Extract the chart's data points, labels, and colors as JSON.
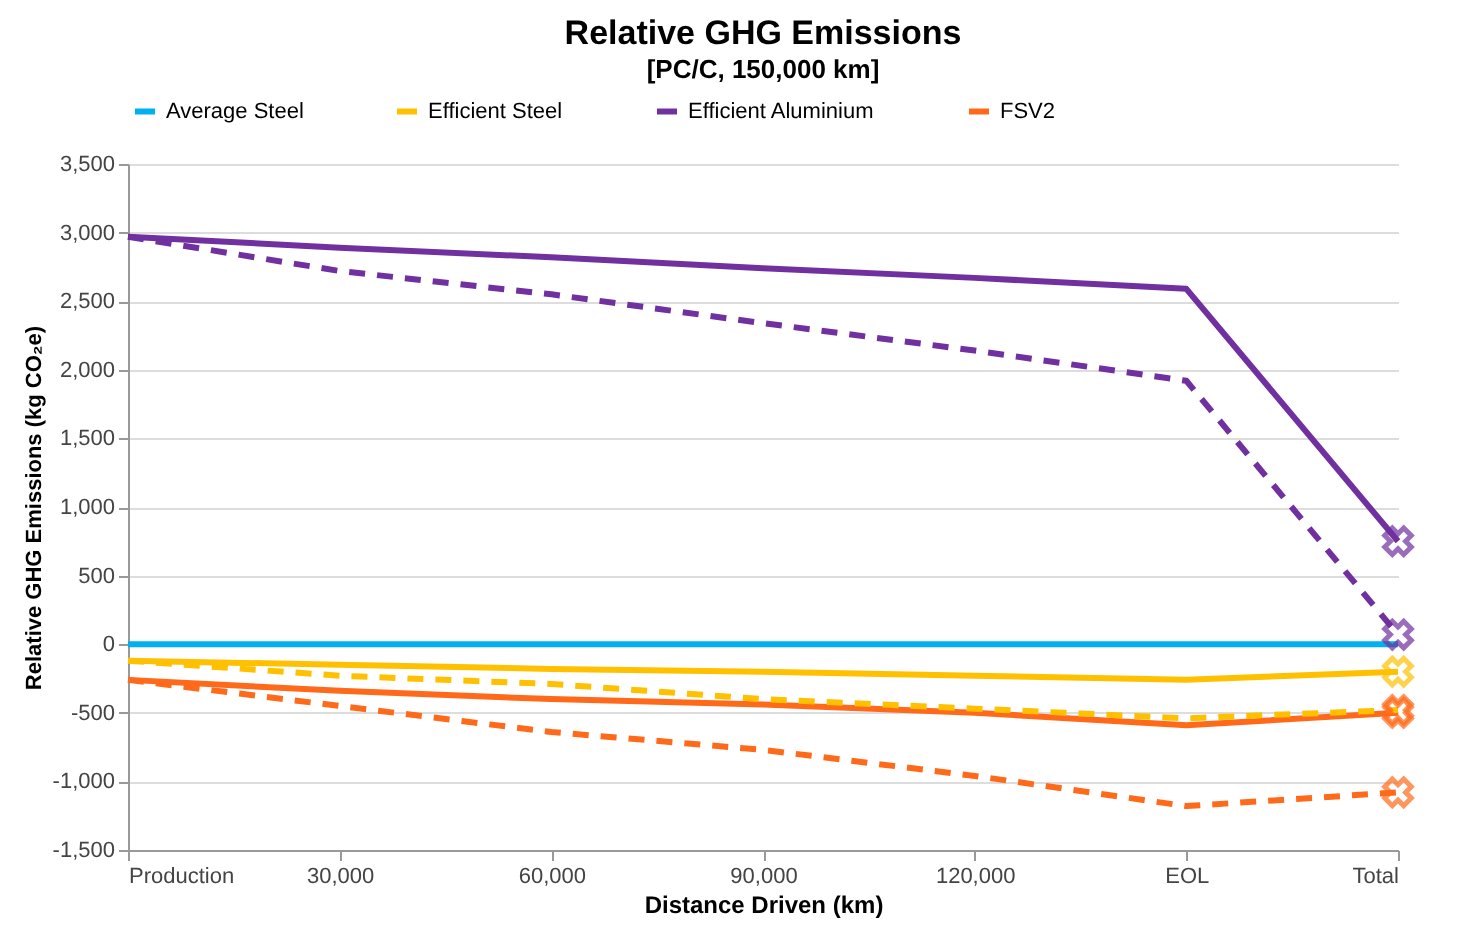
{
  "chart_data": {
    "type": "line",
    "title": "Relative GHG Emissions",
    "subtitle": "[PC/C, 150,000 km]",
    "xlabel": "Distance Driven (km)",
    "ylabel": "Relative GHG Emissions  (kg CO₂e)",
    "categories": [
      "Production",
      "30,000",
      "60,000",
      "90,000",
      "120,000",
      "EOL",
      "Total"
    ],
    "series": [
      {
        "name": "Average Steel",
        "color": "#00b0f0",
        "values": [
          0,
          0,
          0,
          0,
          0,
          0,
          0
        ]
      },
      {
        "name": "Efficient Steel",
        "color": "#ffc000",
        "values": [
          -120,
          -150,
          -180,
          -200,
          -230,
          -260,
          -200
        ]
      },
      {
        "name": "Efficient Aluminium",
        "color": "#7030a0",
        "values": [
          2970,
          2890,
          2820,
          2740,
          2670,
          2590,
          750
        ]
      },
      {
        "name": "FSV2",
        "color": "#ff6a1a",
        "values": [
          -260,
          -340,
          -400,
          -440,
          -500,
          -590,
          -500
        ]
      },
      {
        "color": "#ffc000",
        "line_style": "dashed",
        "values": [
          -120,
          -230,
          -290,
          -400,
          -470,
          -540,
          -480
        ]
      },
      {
        "color": "#7030a0",
        "line_style": "dashed",
        "values": [
          2970,
          2720,
          2550,
          2340,
          2140,
          1920,
          70
        ]
      },
      {
        "color": "#ff6a1a",
        "line_style": "dashed",
        "values": [
          -260,
          -450,
          -640,
          -770,
          -960,
          -1180,
          -1080
        ]
      },
      {
        "type": "scatter",
        "marker": "cross",
        "color": "#ffc000",
        "x": [
          "Total"
        ],
        "values": [
          -200
        ]
      },
      {
        "type": "scatter",
        "marker": "cross",
        "color": "#7030a0",
        "x": [
          "Total",
          "Total"
        ],
        "values": [
          750,
          70
        ]
      },
      {
        "type": "scatter",
        "marker": "cross",
        "color": "#ff6a1a",
        "x": [
          "Total",
          "Total",
          "Total"
        ],
        "values": [
          -500,
          -480,
          -1080
        ]
      }
    ],
    "ylim": [
      -1500,
      3500
    ],
    "yticks": [
      {
        "value": -1500,
        "label": "-1,500"
      },
      {
        "value": -1000,
        "label": "-1,000"
      },
      {
        "value": -500,
        "label": "-500"
      },
      0,
      500,
      {
        "value": 1000,
        "label": "1,000"
      },
      {
        "value": 1500,
        "label": "1,500"
      },
      {
        "value": 2000,
        "label": "2,000"
      },
      {
        "value": 2500,
        "label": "2,500"
      },
      {
        "value": 3000,
        "label": "3,000"
      },
      {
        "value": 3500,
        "label": "3,500"
      }
    ],
    "grid": "y",
    "legend": "top",
    "marker": "none",
    "line_style": "solid"
  }
}
